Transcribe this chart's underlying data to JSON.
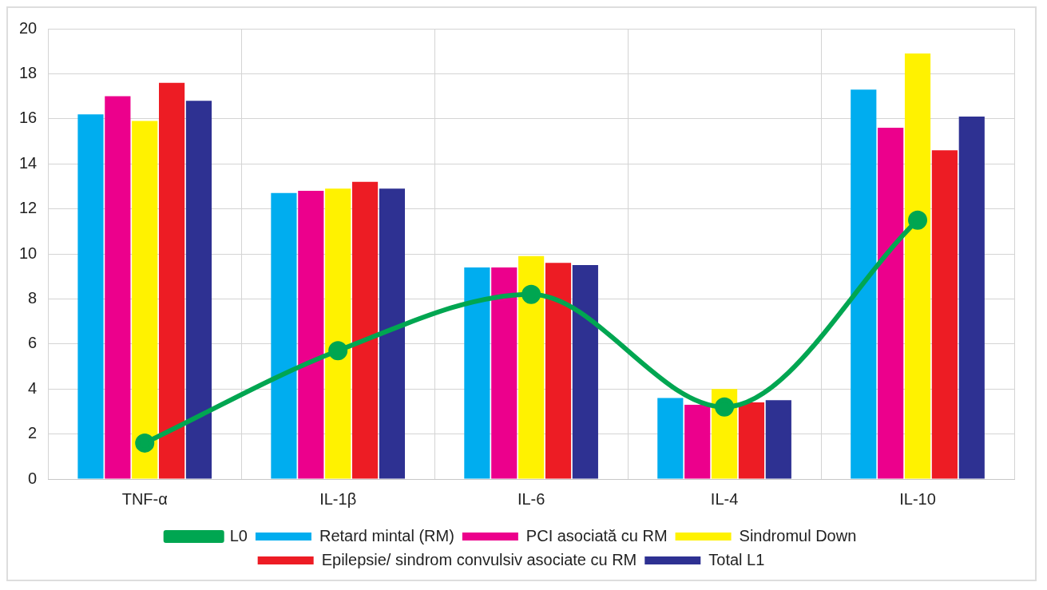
{
  "chart_data": {
    "type": "bar",
    "categories": [
      "TNF-α",
      "IL-1β",
      "IL-6",
      "IL-4",
      "IL-10"
    ],
    "series": [
      {
        "name": "Retard mintal (RM)",
        "color": "#00adef",
        "values": [
          16.2,
          12.7,
          9.4,
          3.6,
          17.3
        ]
      },
      {
        "name": "PCI asociată cu RM",
        "color": "#ec008c",
        "values": [
          17.0,
          12.8,
          9.4,
          3.3,
          15.6
        ]
      },
      {
        "name": "Sindromul Down",
        "color": "#fff200",
        "values": [
          15.9,
          12.9,
          9.9,
          4.0,
          18.9
        ]
      },
      {
        "name": "Epilepsie/ sindrom convulsiv asociate cu RM",
        "color": "#ed1c24",
        "values": [
          17.6,
          13.2,
          9.6,
          3.4,
          14.6
        ]
      },
      {
        "name": "Total L1",
        "color": "#2e3192",
        "values": [
          16.8,
          12.9,
          9.5,
          3.5,
          16.1
        ]
      },
      {
        "name": "L0",
        "color": "#00a651",
        "type": "line",
        "marker": "circle",
        "values": [
          1.6,
          5.7,
          8.2,
          3.2,
          11.5
        ]
      }
    ],
    "ylim": [
      0,
      20
    ],
    "yticks": [
      0,
      2,
      4,
      6,
      8,
      10,
      12,
      14,
      16,
      18,
      20
    ],
    "grid": true,
    "legend": "bottom"
  }
}
